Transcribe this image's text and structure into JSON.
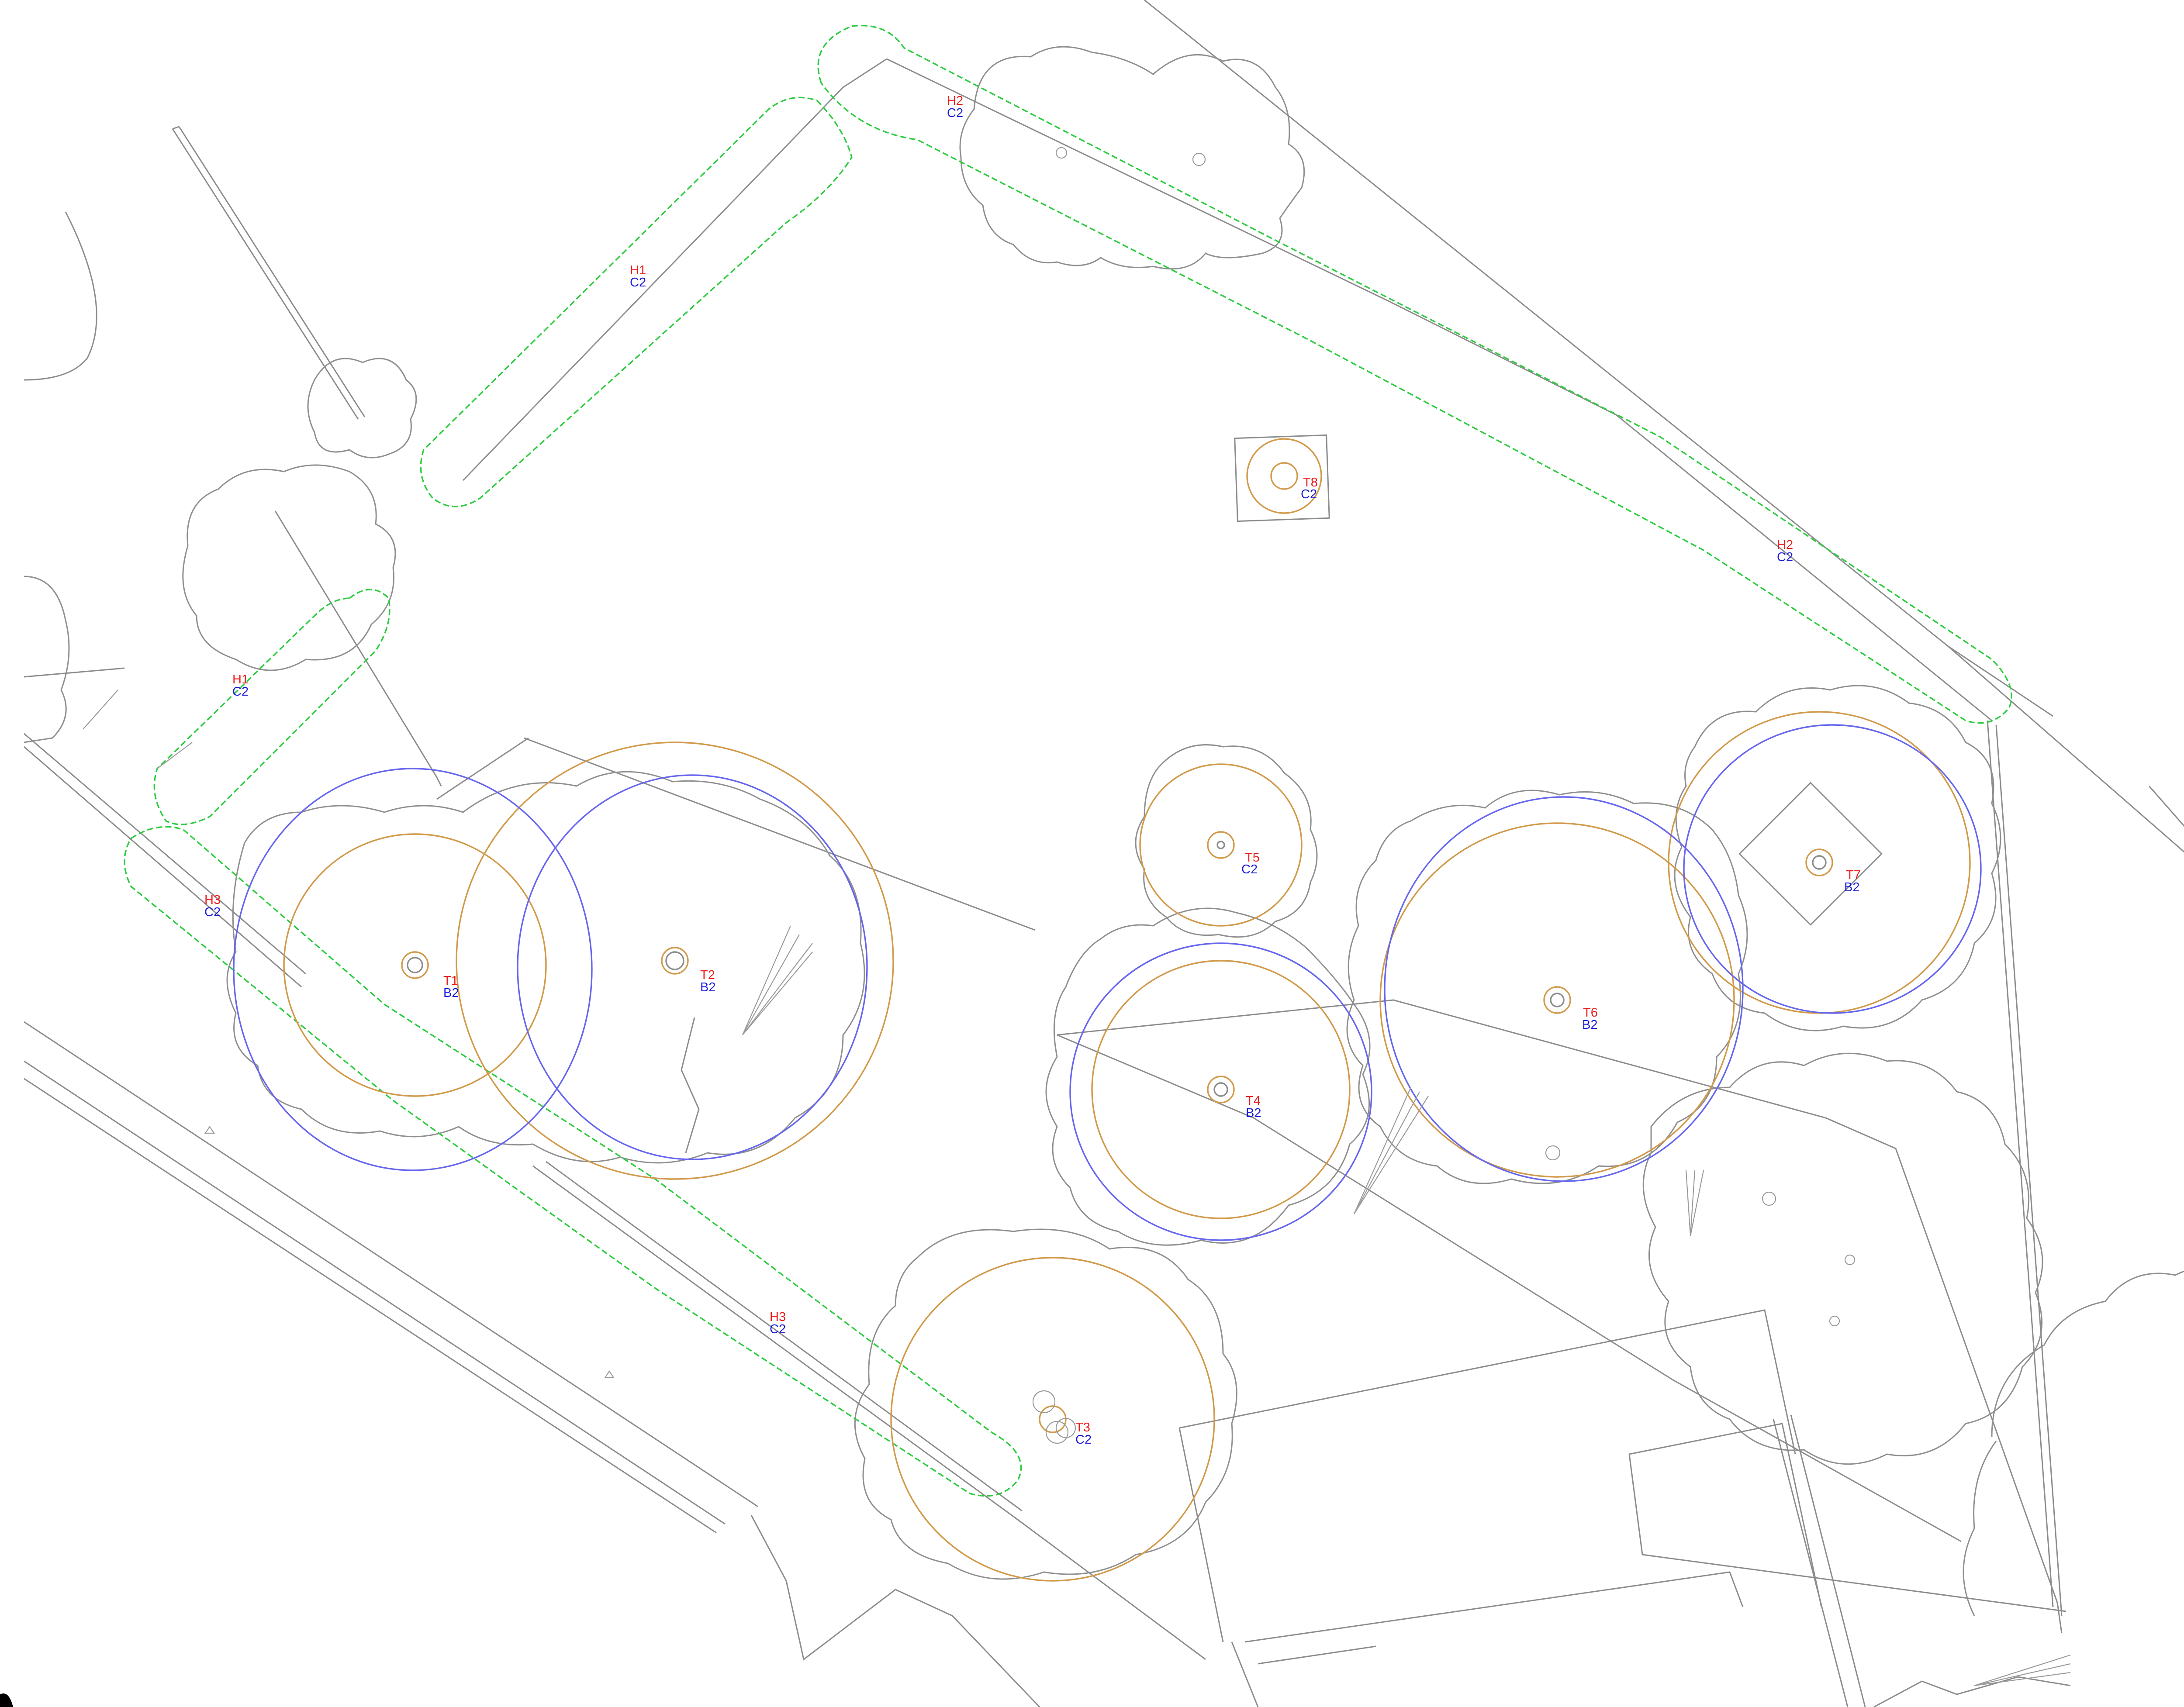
{
  "colors": {
    "tree_id": "#ee1c1c",
    "category": "#1c1cd9",
    "hedge_outline": "#2ecc40",
    "root_protection_area": "#d19a4a",
    "crown_spread": "#6666ee",
    "base_linework": "#8c8c8c"
  },
  "trees": [
    {
      "id": "T1",
      "category": "B2"
    },
    {
      "id": "T2",
      "category": "B2"
    },
    {
      "id": "T3",
      "category": "C2"
    },
    {
      "id": "T4",
      "category": "B2"
    },
    {
      "id": "T5",
      "category": "C2"
    },
    {
      "id": "T6",
      "category": "B2"
    },
    {
      "id": "T7",
      "category": "B2"
    },
    {
      "id": "T8",
      "category": "C2"
    }
  ],
  "hedges": [
    {
      "id": "H1",
      "category": "C2"
    },
    {
      "id": "H1",
      "category": "C2"
    },
    {
      "id": "H2",
      "category": "C2"
    },
    {
      "id": "H2",
      "category": "C2"
    },
    {
      "id": "H3",
      "category": "C2"
    },
    {
      "id": "H3",
      "category": "C2"
    }
  ]
}
